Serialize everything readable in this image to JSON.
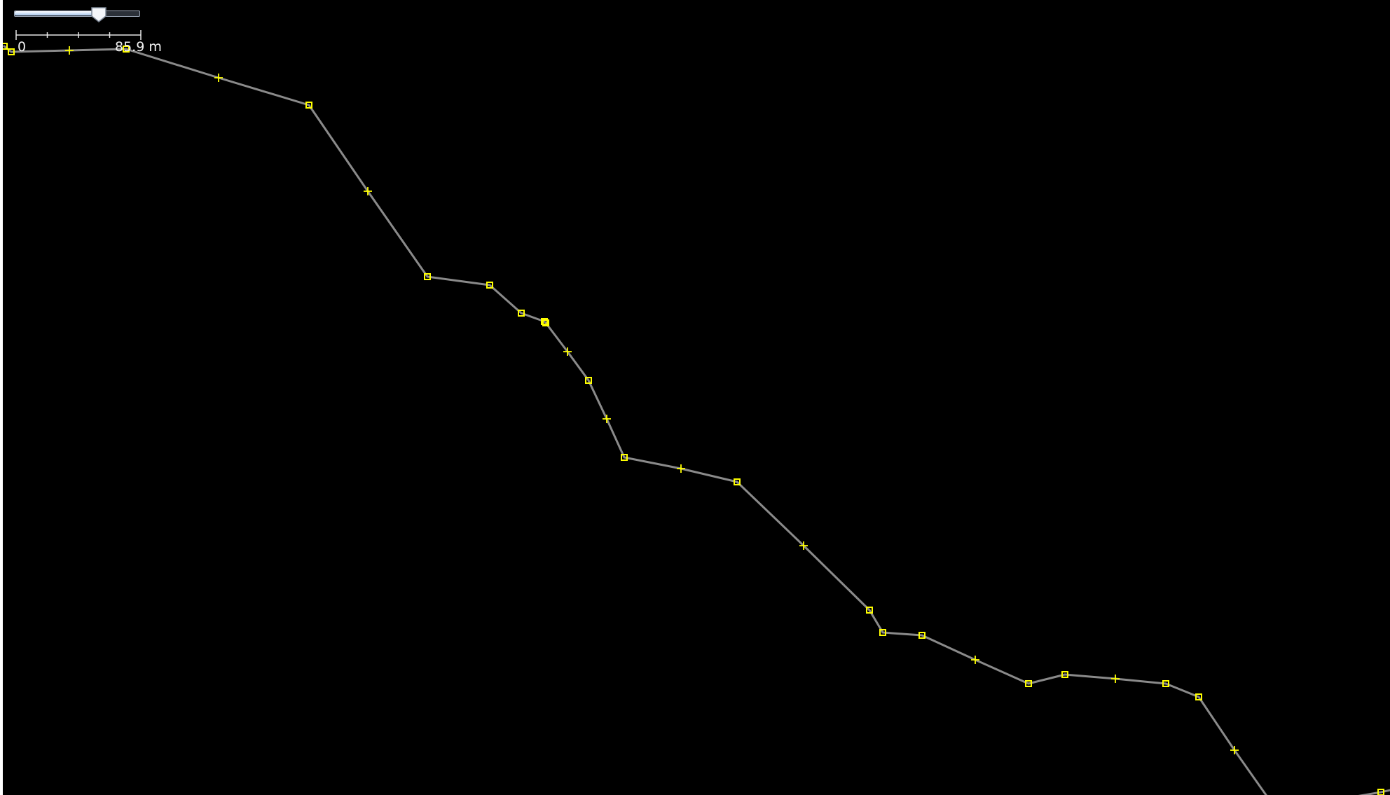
{
  "map": {
    "background": "#000000",
    "track_color": "#8a8a8a",
    "node_color": "#ffff00"
  },
  "zoom": {
    "level_fraction": 0.68,
    "track_color": "#9aa4b4",
    "fill_color": "#a9c8ee"
  },
  "scale": {
    "start_label": "0",
    "end_label": "85.9 m",
    "divisions": 4
  },
  "nodes": [
    {
      "icon": "square-node-icon"
    },
    {
      "icon": "cross-node-icon"
    }
  ]
}
